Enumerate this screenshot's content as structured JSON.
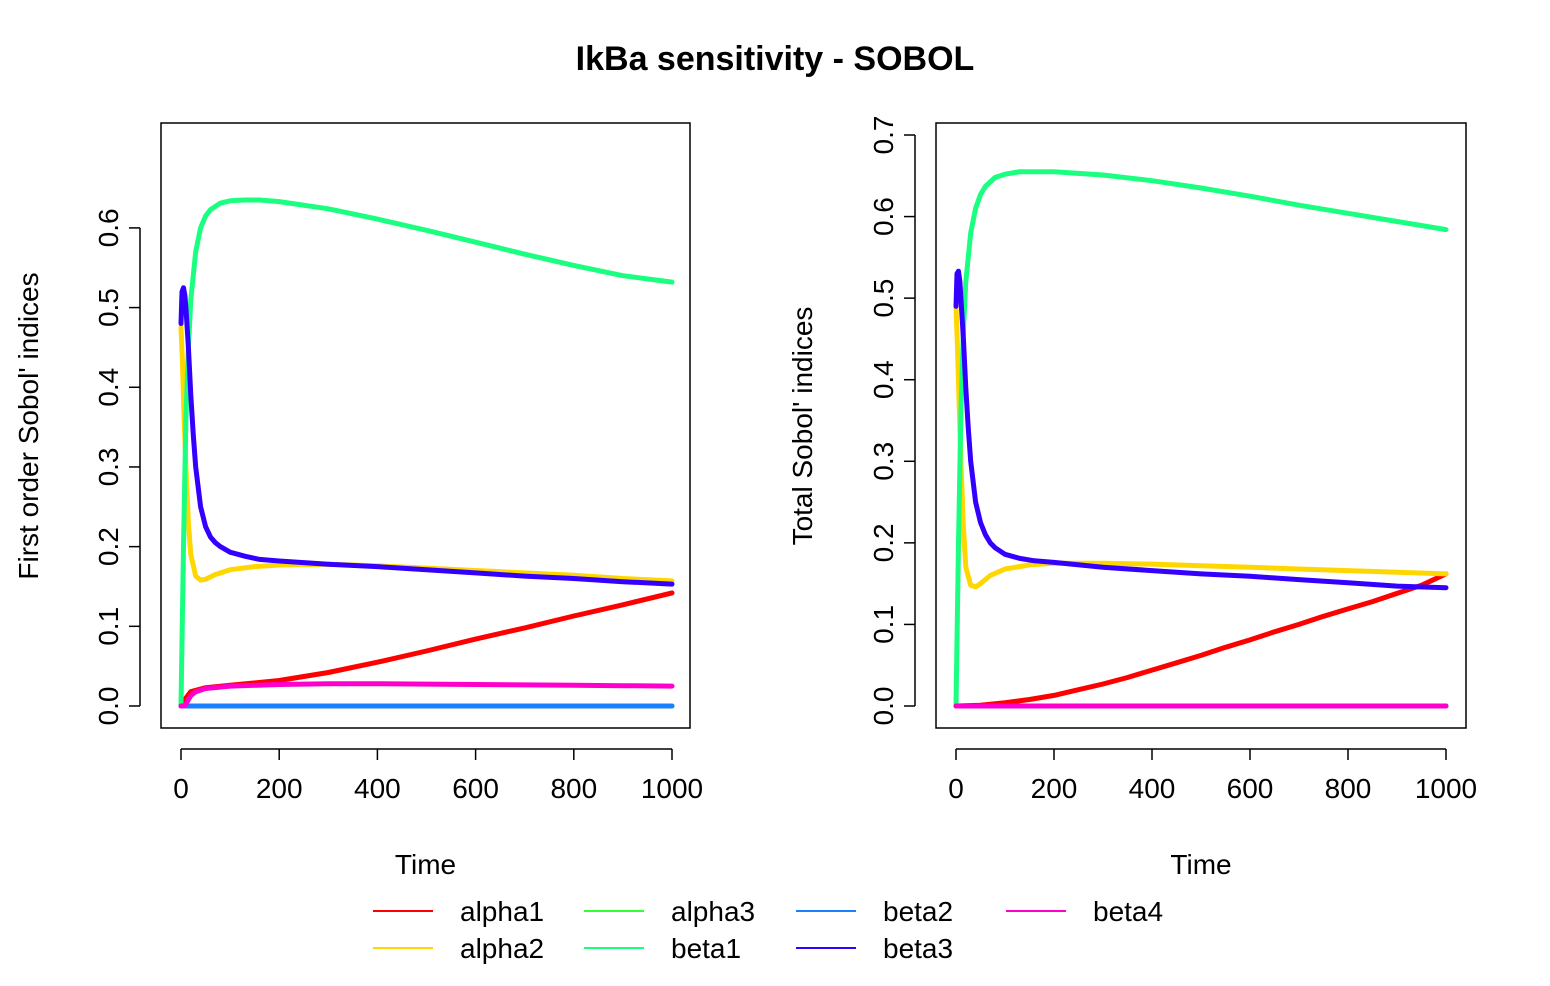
{
  "figure_title": "IkBa sensitivity - SOBOL",
  "chart_data": [
    {
      "type": "line",
      "ylabel": "First order Sobol' indices",
      "xlabel": "Time",
      "xlim": [
        0,
        1000
      ],
      "ylim": [
        0,
        0.63
      ],
      "x_ticks": [
        0,
        200,
        400,
        600,
        800,
        1000
      ],
      "y_ticks": [
        0.0,
        0.1,
        0.2,
        0.3,
        0.4,
        0.5,
        0.6
      ],
      "y_tick_labels": [
        "0.0",
        "0.1",
        "0.2",
        "0.3",
        "0.4",
        "0.5",
        "0.6"
      ],
      "series": [
        {
          "name": "alpha1",
          "color": "#FF0000",
          "x": [
            0,
            5,
            10,
            20,
            50,
            100,
            200,
            300,
            400,
            500,
            600,
            700,
            800,
            900,
            1000
          ],
          "y": [
            0,
            0.003,
            0.01,
            0.018,
            0.023,
            0.026,
            0.032,
            0.042,
            0.055,
            0.069,
            0.084,
            0.098,
            0.113,
            0.127,
            0.142
          ]
        },
        {
          "name": "alpha2",
          "color": "#FFD700",
          "x": [
            0,
            3,
            6,
            10,
            15,
            20,
            30,
            40,
            50,
            70,
            100,
            150,
            200,
            300,
            400,
            500,
            600,
            700,
            800,
            900,
            1000
          ],
          "y": [
            0.475,
            0.43,
            0.37,
            0.3,
            0.23,
            0.19,
            0.163,
            0.158,
            0.159,
            0.165,
            0.171,
            0.175,
            0.177,
            0.178,
            0.176,
            0.173,
            0.17,
            0.167,
            0.164,
            0.16,
            0.157
          ]
        },
        {
          "name": "alpha3",
          "color": "#33FF33",
          "x": [
            0,
            1000
          ],
          "y": [
            0,
            0
          ]
        },
        {
          "name": "beta1",
          "color": "#1AFF80",
          "x": [
            0,
            5,
            10,
            15,
            20,
            30,
            40,
            50,
            60,
            80,
            100,
            130,
            160,
            200,
            300,
            400,
            500,
            600,
            700,
            800,
            900,
            1000
          ],
          "y": [
            0,
            0.2,
            0.36,
            0.45,
            0.51,
            0.57,
            0.6,
            0.615,
            0.623,
            0.631,
            0.634,
            0.635,
            0.635,
            0.633,
            0.624,
            0.611,
            0.597,
            0.582,
            0.567,
            0.553,
            0.54,
            0.532
          ]
        },
        {
          "name": "beta2",
          "color": "#1A80FF",
          "x": [
            0,
            1000
          ],
          "y": [
            0,
            0
          ]
        },
        {
          "name": "beta3",
          "color": "#3300FF",
          "x": [
            0,
            2,
            5,
            8,
            10,
            15,
            20,
            25,
            30,
            40,
            50,
            60,
            70,
            80,
            100,
            130,
            160,
            200,
            300,
            400,
            500,
            600,
            700,
            800,
            900,
            1000
          ],
          "y": [
            0.48,
            0.52,
            0.525,
            0.515,
            0.5,
            0.45,
            0.39,
            0.34,
            0.3,
            0.25,
            0.225,
            0.212,
            0.205,
            0.2,
            0.193,
            0.188,
            0.184,
            0.182,
            0.178,
            0.175,
            0.171,
            0.167,
            0.163,
            0.16,
            0.156,
            0.153
          ]
        },
        {
          "name": "beta4",
          "color": "#FF00CC",
          "x": [
            0,
            5,
            10,
            15,
            20,
            30,
            50,
            100,
            200,
            300,
            400,
            500,
            600,
            700,
            800,
            900,
            1000
          ],
          "y": [
            0,
            0,
            0.002,
            0.008,
            0.013,
            0.018,
            0.022,
            0.025,
            0.027,
            0.028,
            0.028,
            0.0275,
            0.027,
            0.0265,
            0.026,
            0.0255,
            0.025
          ]
        }
      ]
    },
    {
      "type": "line",
      "ylabel": "Total Sobol' indices",
      "xlabel": "Time",
      "xlim": [
        0,
        1000
      ],
      "ylim": [
        0,
        0.7
      ],
      "x_ticks": [
        0,
        200,
        400,
        600,
        800,
        1000
      ],
      "y_ticks": [
        0.0,
        0.1,
        0.2,
        0.3,
        0.4,
        0.5,
        0.6,
        0.7
      ],
      "y_tick_labels": [
        "0.0",
        "0.1",
        "0.2",
        "0.3",
        "0.4",
        "0.5",
        "0.6",
        "0.7"
      ],
      "series": [
        {
          "name": "alpha1",
          "color": "#FF0000",
          "x": [
            0,
            50,
            100,
            150,
            200,
            250,
            300,
            350,
            400,
            450,
            500,
            550,
            600,
            650,
            700,
            750,
            800,
            850,
            900,
            950,
            1000
          ],
          "y": [
            0,
            0.001,
            0.004,
            0.008,
            0.013,
            0.02,
            0.027,
            0.035,
            0.044,
            0.053,
            0.062,
            0.072,
            0.081,
            0.091,
            0.1,
            0.11,
            0.119,
            0.128,
            0.138,
            0.148,
            0.162
          ]
        },
        {
          "name": "alpha2",
          "color": "#FFD700",
          "x": [
            0,
            3,
            6,
            10,
            15,
            20,
            30,
            40,
            50,
            70,
            100,
            150,
            200,
            300,
            400,
            500,
            600,
            700,
            800,
            900,
            1000
          ],
          "y": [
            0.49,
            0.44,
            0.38,
            0.3,
            0.22,
            0.17,
            0.148,
            0.146,
            0.15,
            0.16,
            0.168,
            0.173,
            0.175,
            0.175,
            0.174,
            0.172,
            0.17,
            0.168,
            0.166,
            0.164,
            0.162
          ]
        },
        {
          "name": "alpha3",
          "color": "#33FF33",
          "x": [
            0,
            1000
          ],
          "y": [
            0,
            0
          ]
        },
        {
          "name": "beta1",
          "color": "#1AFF80",
          "x": [
            0,
            5,
            10,
            15,
            20,
            30,
            40,
            50,
            60,
            80,
            100,
            130,
            160,
            200,
            300,
            400,
            500,
            600,
            700,
            800,
            900,
            1000
          ],
          "y": [
            0,
            0.2,
            0.36,
            0.46,
            0.52,
            0.58,
            0.61,
            0.627,
            0.637,
            0.648,
            0.652,
            0.655,
            0.655,
            0.655,
            0.651,
            0.644,
            0.635,
            0.625,
            0.614,
            0.604,
            0.594,
            0.584
          ]
        },
        {
          "name": "beta2",
          "color": "#1A80FF",
          "x": [
            0,
            1000
          ],
          "y": [
            0,
            0
          ]
        },
        {
          "name": "beta3",
          "color": "#3300FF",
          "x": [
            0,
            2,
            5,
            8,
            10,
            15,
            20,
            25,
            30,
            40,
            50,
            60,
            70,
            80,
            100,
            130,
            160,
            200,
            300,
            400,
            500,
            600,
            700,
            800,
            900,
            1000
          ],
          "y": [
            0.49,
            0.53,
            0.533,
            0.52,
            0.5,
            0.45,
            0.39,
            0.34,
            0.3,
            0.25,
            0.225,
            0.21,
            0.2,
            0.194,
            0.186,
            0.181,
            0.178,
            0.176,
            0.17,
            0.166,
            0.162,
            0.159,
            0.155,
            0.151,
            0.147,
            0.145
          ]
        },
        {
          "name": "beta4",
          "color": "#FF00CC",
          "x": [
            0,
            1000
          ],
          "y": [
            0,
            0
          ]
        }
      ]
    }
  ],
  "legend": {
    "placement": "bottom",
    "entries": [
      {
        "name": "alpha1",
        "color": "#FF0000"
      },
      {
        "name": "alpha2",
        "color": "#FFD700"
      },
      {
        "name": "alpha3",
        "color": "#33FF33"
      },
      {
        "name": "beta1",
        "color": "#1AFF80"
      },
      {
        "name": "beta2",
        "color": "#1A80FF"
      },
      {
        "name": "beta3",
        "color": "#3300FF"
      },
      {
        "name": "beta4",
        "color": "#FF00CC"
      }
    ]
  }
}
